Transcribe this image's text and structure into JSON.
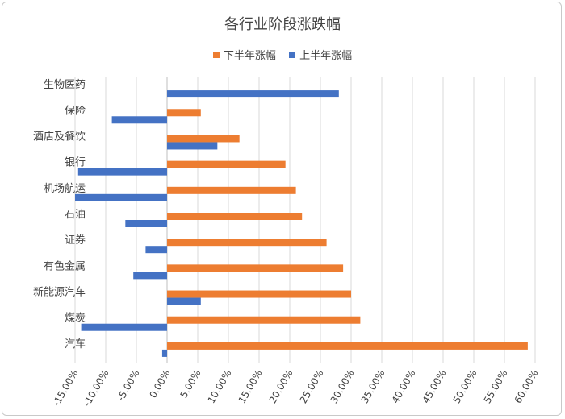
{
  "chart_data": {
    "type": "bar",
    "orientation": "horizontal",
    "title": "各行业阶段涨跌幅",
    "categories": [
      "生物医药",
      "保险",
      "酒店及餐饮",
      "银行",
      "机场航运",
      "石油",
      "证券",
      "有色金属",
      "新能源汽车",
      "煤炭",
      "汽车"
    ],
    "series": [
      {
        "name": "下半年涨幅",
        "color": "#ED7D31",
        "values": [
          null,
          5.5,
          11.8,
          19.3,
          21.0,
          22.0,
          26.0,
          28.7,
          30.0,
          31.5,
          58.8
        ]
      },
      {
        "name": "上半年涨幅",
        "color": "#4472C4",
        "values": [
          28.0,
          -9.0,
          8.2,
          -14.5,
          -15.0,
          -6.8,
          -3.5,
          -5.5,
          5.5,
          -14.0,
          -0.8
        ]
      }
    ],
    "legend_order": [
      "下半年涨幅",
      "上半年涨幅"
    ],
    "xlim": [
      -15,
      60
    ],
    "xticks": [
      -15,
      -10,
      -5,
      0,
      5,
      10,
      15,
      20,
      25,
      30,
      35,
      40,
      45,
      50,
      55,
      60
    ],
    "xtick_labels": [
      "-15.00%",
      "-10.00%",
      "-5.00%",
      "0.00%",
      "5.00%",
      "10.00%",
      "15.00%",
      "20.00%",
      "25.00%",
      "30.00%",
      "35.00%",
      "40.00%",
      "45.00%",
      "50.00%",
      "55.00%",
      "60.00%"
    ],
    "grid": true,
    "legend_position": "top"
  }
}
